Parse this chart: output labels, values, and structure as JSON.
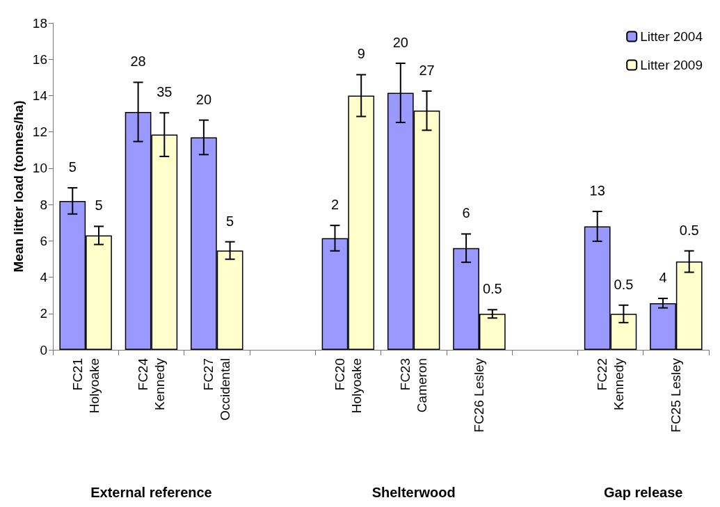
{
  "chart_data": {
    "type": "bar",
    "ylabel": "Mean litter load (tonnes/ha)",
    "categories": [
      "FC21\nHolyoake",
      "FC24\nKennedy",
      "FC27\nOccidental",
      null,
      "FC20\nHolyoake",
      "FC23\nCameron",
      "FC26 Lesley",
      null,
      "FC22\nKennedy",
      "FC25 Lesley"
    ],
    "series": [
      {
        "name": "Litter 2004",
        "color": "#9999ff",
        "values": [
          8.2,
          13.1,
          11.7,
          null,
          6.15,
          14.15,
          5.6,
          null,
          6.8,
          2.57
        ],
        "errors": [
          0.72,
          1.63,
          0.95,
          null,
          0.7,
          1.63,
          0.78,
          null,
          0.82,
          0.26
        ]
      },
      {
        "name": "Litter 2009",
        "color": "#ffffcc",
        "values": [
          6.3,
          11.85,
          5.47,
          null,
          14.0,
          13.17,
          1.98,
          null,
          1.98,
          4.86
        ],
        "errors": [
          0.5,
          1.2,
          0.48,
          null,
          1.15,
          1.08,
          0.23,
          null,
          0.48,
          0.59
        ]
      }
    ],
    "ylim": [
      0,
      18
    ],
    "yticks": [
      0,
      2,
      4,
      6,
      8,
      10,
      12,
      14,
      16,
      18
    ],
    "grid": false,
    "legend": "top right",
    "annotations": [
      "External reference",
      "Shelterwood",
      "Gap release",
      "5",
      "5",
      "28",
      "35",
      "20",
      "5",
      "2",
      "9",
      "20",
      "27",
      "6",
      "0.5",
      "13",
      "0.5",
      "4",
      "0.5"
    ]
  }
}
